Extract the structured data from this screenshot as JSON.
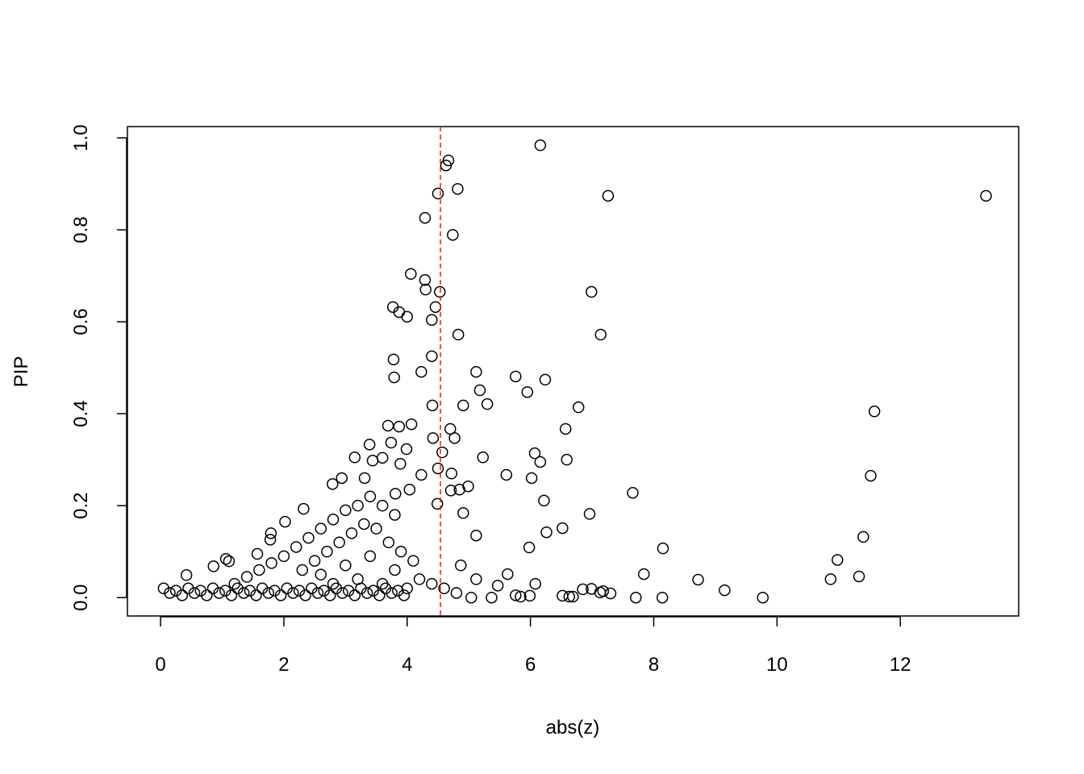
{
  "chart_data": {
    "type": "scatter",
    "x_label": "abs(z)",
    "y_label": "PIP",
    "color": "#000000",
    "vline": 4.54,
    "vline_color": "#e41a1c",
    "xlim": [
      -0.537,
      13.92
    ],
    "ylim": [
      -0.04,
      1.0246
    ],
    "xticks": [
      0,
      2,
      4,
      6,
      8,
      10,
      12
    ],
    "yticks": [
      {
        "value": 0,
        "label": "0.0"
      },
      {
        "value": 0.2,
        "label": "0.2"
      },
      {
        "value": 0.4,
        "label": "0.4"
      },
      {
        "value": 0.6,
        "label": "0.6"
      },
      {
        "value": 0.8,
        "label": "0.8"
      },
      {
        "value": 1,
        "label": "1.0"
      }
    ],
    "x": [
      6.16,
      4.67,
      4.63,
      4.82,
      4.5,
      7.26,
      13.39,
      4.29,
      4.74,
      4.06,
      4.29,
      4.3,
      4.53,
      6.99,
      3.77,
      4.46,
      3.87,
      4.0,
      4.4,
      4.83,
      7.14,
      4.4,
      3.78,
      4.23,
      5.12,
      3.79,
      5.76,
      6.24,
      5.18,
      5.95,
      4.41,
      5.3,
      4.91,
      6.78,
      11.58,
      3.69,
      4.07,
      3.87,
      4.7,
      6.57,
      4.42,
      4.77,
      3.39,
      3.74,
      3.99,
      4.57,
      6.07,
      3.15,
      5.23,
      6.59,
      6.16,
      3.6,
      3.44,
      3.89,
      4.5,
      4.23,
      5.61,
      4.72,
      11.52,
      6.02,
      2.94,
      2.79,
      3.31,
      4.99,
      4.85,
      4.71,
      7.66,
      6.22,
      4.49,
      4.91,
      6.96,
      3.81,
      4.04,
      6.52,
      6.26,
      11.4,
      5.12,
      2.32,
      2.02,
      8.15,
      5.98,
      10.98,
      4.87,
      7.84,
      5.63,
      10.87,
      11.33,
      8.72,
      9.15,
      9.77,
      7.71,
      8.14,
      6.08,
      6.52,
      6.63,
      6.69,
      6.85,
      6.99,
      7.13,
      7.18,
      7.3,
      5.37,
      5.84,
      5.99,
      5.76,
      5.47,
      5.12,
      5.04,
      0.42,
      0.86,
      1.06,
      1.11,
      1.57,
      1.79,
      1.78,
      0.05,
      0.15,
      0.25,
      0.35,
      0.45,
      0.55,
      0.65,
      0.75,
      0.85,
      0.95,
      1.05,
      1.15,
      1.25,
      1.35,
      1.45,
      1.55,
      1.65,
      1.75,
      1.85,
      1.95,
      2.05,
      2.15,
      2.25,
      2.35,
      2.45,
      2.55,
      2.65,
      2.75,
      2.85,
      2.95,
      3.05,
      3.15,
      3.25,
      3.35,
      3.45,
      3.55,
      3.65,
      3.75,
      3.85,
      3.95,
      1.2,
      1.4,
      1.6,
      1.8,
      2.0,
      2.2,
      2.4,
      2.6,
      2.8,
      3.0,
      3.2,
      3.4,
      3.6,
      3.8,
      2.5,
      2.7,
      2.9,
      3.1,
      3.3,
      3.5,
      3.7,
      3.9,
      4.1,
      2.3,
      2.6,
      3.0,
      3.4,
      3.8,
      4.2,
      4.4,
      4.6,
      4.8,
      2.8,
      3.2,
      3.6,
      4.0
    ],
    "y": [
      0.984,
      0.951,
      0.94,
      0.889,
      0.879,
      0.874,
      0.874,
      0.826,
      0.789,
      0.704,
      0.691,
      0.67,
      0.665,
      0.665,
      0.632,
      0.632,
      0.621,
      0.611,
      0.604,
      0.572,
      0.572,
      0.525,
      0.518,
      0.491,
      0.491,
      0.479,
      0.481,
      0.474,
      0.451,
      0.447,
      0.418,
      0.421,
      0.418,
      0.414,
      0.405,
      0.374,
      0.377,
      0.372,
      0.367,
      0.367,
      0.347,
      0.347,
      0.333,
      0.337,
      0.323,
      0.316,
      0.314,
      0.305,
      0.305,
      0.3,
      0.295,
      0.304,
      0.298,
      0.291,
      0.281,
      0.267,
      0.267,
      0.27,
      0.265,
      0.26,
      0.26,
      0.247,
      0.26,
      0.242,
      0.235,
      0.233,
      0.228,
      0.211,
      0.204,
      0.184,
      0.182,
      0.226,
      0.235,
      0.151,
      0.142,
      0.132,
      0.135,
      0.193,
      0.165,
      0.107,
      0.109,
      0.082,
      0.07,
      0.051,
      0.051,
      0.04,
      0.046,
      0.039,
      0.016,
      0.0,
      0.0,
      0.0,
      0.03,
      0.004,
      0.002,
      0.002,
      0.018,
      0.019,
      0.011,
      0.014,
      0.009,
      0.0,
      0.002,
      0.004,
      0.005,
      0.026,
      0.04,
      0.0,
      0.049,
      0.068,
      0.084,
      0.079,
      0.095,
      0.14,
      0.126,
      0.02,
      0.01,
      0.015,
      0.005,
      0.02,
      0.01,
      0.015,
      0.005,
      0.02,
      0.01,
      0.015,
      0.005,
      0.02,
      0.01,
      0.015,
      0.005,
      0.02,
      0.01,
      0.015,
      0.005,
      0.02,
      0.01,
      0.015,
      0.005,
      0.02,
      0.01,
      0.015,
      0.005,
      0.02,
      0.01,
      0.015,
      0.005,
      0.02,
      0.01,
      0.015,
      0.005,
      0.02,
      0.01,
      0.015,
      0.005,
      0.03,
      0.045,
      0.06,
      0.075,
      0.09,
      0.11,
      0.13,
      0.15,
      0.17,
      0.19,
      0.2,
      0.22,
      0.2,
      0.18,
      0.08,
      0.1,
      0.12,
      0.14,
      0.16,
      0.15,
      0.12,
      0.1,
      0.08,
      0.06,
      0.05,
      0.07,
      0.09,
      0.06,
      0.04,
      0.03,
      0.02,
      0.01,
      0.03,
      0.04,
      0.03,
      0.02
    ]
  }
}
